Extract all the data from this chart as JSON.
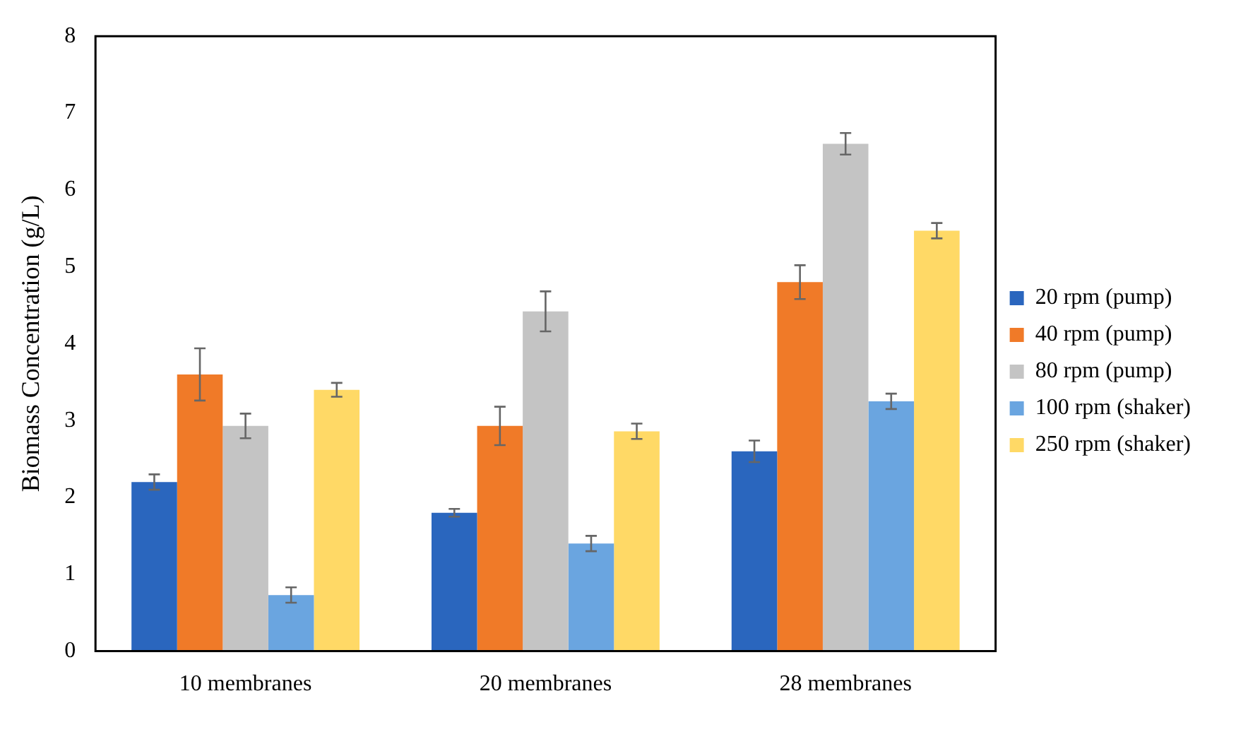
{
  "chart_data": {
    "type": "bar",
    "ylabel": "Biomass Concentration (g/L)",
    "categories": [
      "10 membranes",
      "20 membranes",
      "28 membranes"
    ],
    "series": [
      {
        "name": "20 rpm (pump)",
        "color": "#2a66be",
        "values": [
          2.2,
          1.8,
          2.6
        ],
        "errors": [
          0.1,
          0.05,
          0.14
        ]
      },
      {
        "name": "40 rpm (pump)",
        "color": "#f07a28",
        "values": [
          3.6,
          2.93,
          4.8
        ],
        "errors": [
          0.34,
          0.25,
          0.22
        ]
      },
      {
        "name": "80 rpm (pump)",
        "color": "#c4c4c4",
        "values": [
          2.93,
          4.42,
          6.6
        ],
        "errors": [
          0.16,
          0.26,
          0.14
        ]
      },
      {
        "name": "100 rpm (shaker)",
        "color": "#6aa5e0",
        "values": [
          0.73,
          1.4,
          3.25
        ],
        "errors": [
          0.1,
          0.1,
          0.1
        ]
      },
      {
        "name": "250 rpm (shaker)",
        "color": "#ffd966",
        "values": [
          3.4,
          2.86,
          5.47
        ],
        "errors": [
          0.09,
          0.1,
          0.1
        ]
      }
    ],
    "ylim": [
      0,
      8
    ],
    "yticks": [
      0,
      1,
      2,
      3,
      4,
      5,
      6,
      7,
      8
    ],
    "grid": false,
    "legend": "right"
  }
}
